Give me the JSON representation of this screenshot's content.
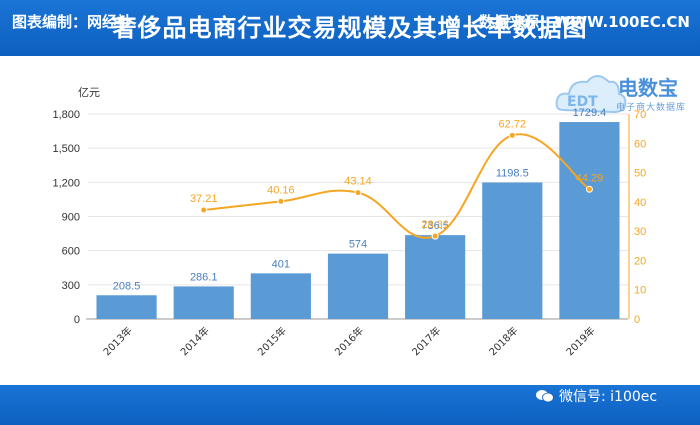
{
  "header": {
    "title": "奢侈品电商行业交易规模及其增长率数据图"
  },
  "footer": {
    "left_label": "图表编制：网经社",
    "right_label": "数据来源：WWW.100EC.CN",
    "wechat_label": "微信号: i100ec"
  },
  "logo": {
    "name": "电数宝",
    "subtitle": "电子商大数据库"
  },
  "colors": {
    "header_bg": "#1a75d6",
    "bar": "#5b9bd5",
    "line": "#f5a623",
    "axis": "#999999"
  },
  "chart_data": {
    "type": "bar",
    "categories": [
      "2013年",
      "2014年",
      "2015年",
      "2016年",
      "2017年",
      "2018年",
      "2019年"
    ],
    "y_unit_label": "亿元",
    "y_ticks": [
      "0",
      "300",
      "600",
      "900",
      "1,200",
      "1,500",
      "1,800"
    ],
    "ylim": [
      0,
      1800
    ],
    "y2lim": [
      0,
      70
    ],
    "y2_ticks": [
      "0",
      "10",
      "20",
      "30",
      "40",
      "50",
      "60",
      "70"
    ],
    "series": [
      {
        "type": "bar",
        "values": [
          208.5,
          286.1,
          401,
          574,
          736.5,
          1198.5,
          1729.4
        ],
        "labels": [
          "208.5",
          "286.1",
          "401",
          "574",
          "736.5",
          "1198.5",
          "1729.4"
        ]
      },
      {
        "type": "line",
        "axis": "right",
        "values": [
          null,
          37.21,
          40.16,
          43.14,
          28.31,
          62.72,
          44.29
        ],
        "labels": [
          "",
          "37.21",
          "40.16",
          "43.14",
          "28.31",
          "62.72",
          "44.29"
        ]
      }
    ],
    "grid": true
  }
}
